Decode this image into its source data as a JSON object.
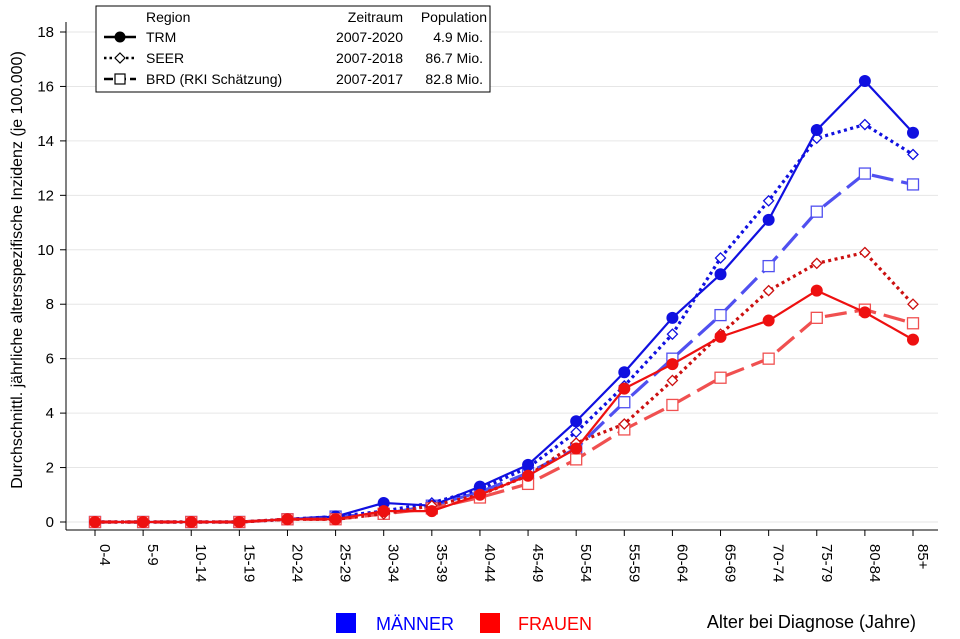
{
  "chart_data": {
    "type": "line",
    "title": "",
    "ylabel": "Durchschnittl. jährliche altersspezifische Inzidenz (je 100.000)",
    "xlabel": "Alter bei Diagnose (Jahre)",
    "ylim": [
      0,
      18
    ],
    "yticks": [
      0,
      2,
      4,
      6,
      8,
      10,
      12,
      14,
      16,
      18
    ],
    "grid": true,
    "categories": [
      "0-4",
      "5-9",
      "10-14",
      "15-19",
      "20-24",
      "25-29",
      "30-34",
      "35-39",
      "40-44",
      "45-49",
      "50-54",
      "55-59",
      "60-64",
      "65-69",
      "70-74",
      "75-79",
      "80-84",
      "85+"
    ],
    "legend": {
      "header_region": "Region",
      "header_period": "Zeitraum",
      "header_population": "Population",
      "entries": [
        {
          "label": "TRM",
          "period": "2007-2020",
          "population": "4.9 Mio."
        },
        {
          "label": "SEER",
          "period": "2007-2018",
          "population": "86.7 Mio."
        },
        {
          "label": "BRD (RKI Schätzung)",
          "period": "2007-2017",
          "population": "82.8 Mio."
        }
      ]
    },
    "sex_legend": [
      {
        "label": "MÄNNER",
        "color": "#0000ff"
      },
      {
        "label": "FRAUEN",
        "color": "#ff0000"
      }
    ],
    "series": [
      {
        "region": "TRM",
        "sex": "MÄNNER",
        "color": "#1010e0",
        "style": "solid",
        "marker": "circle",
        "values": [
          0,
          0,
          0,
          0,
          0.1,
          0.2,
          0.7,
          0.6,
          1.3,
          2.1,
          3.7,
          5.5,
          7.5,
          9.1,
          11.1,
          14.4,
          16.2,
          14.3
        ]
      },
      {
        "region": "SEER",
        "sex": "MÄNNER",
        "color": "#1010e0",
        "style": "dotted",
        "marker": "diamond",
        "values": [
          0,
          0,
          0,
          0,
          0.1,
          0.2,
          0.4,
          0.7,
          1.2,
          2.0,
          3.3,
          5.0,
          6.9,
          9.7,
          11.8,
          14.1,
          14.6,
          13.5
        ]
      },
      {
        "region": "BRD (RKI Schätzung)",
        "sex": "MÄNNER",
        "color": "#5050f0",
        "style": "dashed",
        "marker": "square",
        "values": [
          0,
          0,
          0,
          0,
          0.1,
          0.2,
          0.3,
          0.6,
          1.1,
          1.8,
          2.7,
          4.4,
          6.0,
          7.6,
          9.4,
          11.4,
          12.8,
          12.4
        ]
      },
      {
        "region": "TRM",
        "sex": "FRAUEN",
        "color": "#ee1010",
        "style": "solid",
        "marker": "circle",
        "values": [
          0,
          0,
          0,
          0,
          0.1,
          0.1,
          0.4,
          0.4,
          1.0,
          1.7,
          2.7,
          4.9,
          5.8,
          6.8,
          7.4,
          8.5,
          7.7,
          6.7
        ]
      },
      {
        "region": "SEER",
        "sex": "FRAUEN",
        "color": "#cc1010",
        "style": "dotted",
        "marker": "diamond",
        "values": [
          0,
          0,
          0,
          0,
          0.1,
          0.1,
          0.3,
          0.6,
          1.0,
          1.7,
          2.9,
          3.6,
          5.2,
          6.9,
          8.5,
          9.5,
          9.9,
          8.0
        ]
      },
      {
        "region": "BRD (RKI Schätzung)",
        "sex": "FRAUEN",
        "color": "#f05050",
        "style": "dashed",
        "marker": "square",
        "values": [
          0,
          0,
          0,
          0,
          0.1,
          0.1,
          0.3,
          0.5,
          0.9,
          1.4,
          2.3,
          3.4,
          4.3,
          5.3,
          6.0,
          7.5,
          7.8,
          7.3
        ]
      }
    ]
  }
}
